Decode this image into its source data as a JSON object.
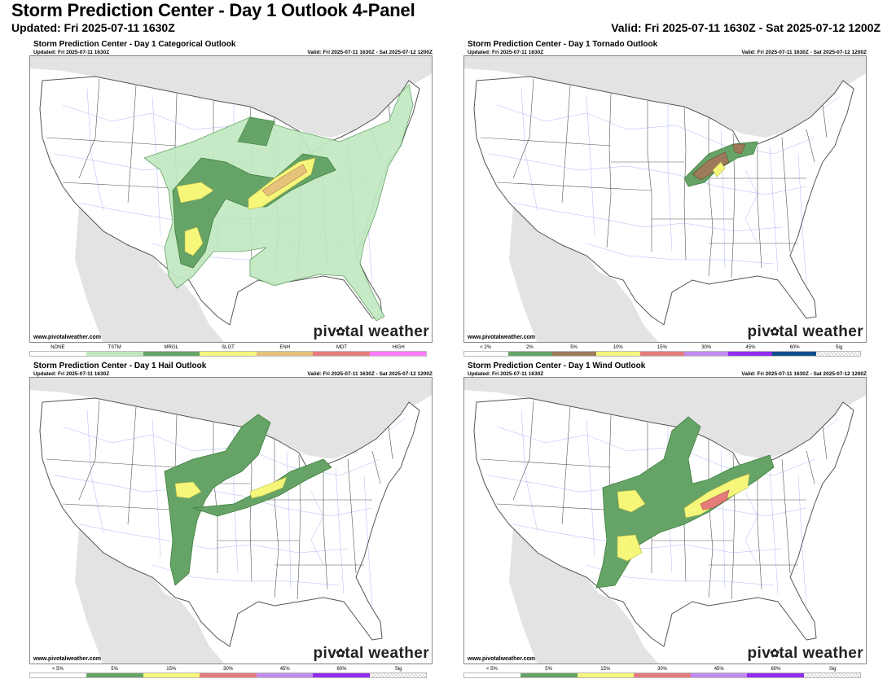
{
  "header": {
    "title": "Storm Prediction Center - Day 1 Outlook 4-Panel",
    "updated": "Updated: Fri 2025-07-11 1630Z",
    "valid": "Valid: Fri 2025-07-11 1630Z - Sat 2025-07-12 1200Z"
  },
  "panels": [
    {
      "title": "Storm Prediction Center - Day 1 Categorical Outlook",
      "updated": "Updated: Fri 2025-07-11 1630Z",
      "valid": "Valid: Fri 2025-07-11 1630Z - Sat 2025-07-12 1200Z",
      "site": "www.pivotalweather.com",
      "logo_left": "piv",
      "logo_right": "tal weather",
      "legend": [
        {
          "label": "NONE",
          "color": "#ffffff"
        },
        {
          "label": "TSTM",
          "color": "#c1e9c1"
        },
        {
          "label": "MRGL",
          "color": "#66a366"
        },
        {
          "label": "SLGT",
          "color": "#f6f67b"
        },
        {
          "label": "ENH",
          "color": "#e6c27a"
        },
        {
          "label": "MDT",
          "color": "#e67b7b"
        },
        {
          "label": "HIGH",
          "color": "#ff7bff"
        }
      ]
    },
    {
      "title": "Storm Prediction Center - Day 1 Tornado Outlook",
      "updated": "Updated: Fri 2025-07-11 1630Z",
      "valid": "Valid: Fri 2025-07-11 1630Z - Sat 2025-07-12 1200Z",
      "site": "www.pivotalweather.com",
      "logo_left": "piv",
      "logo_right": "tal weather",
      "legend": [
        {
          "label": "< 2%",
          "color": "#ffffff"
        },
        {
          "label": "2%",
          "color": "#66a366"
        },
        {
          "label": "5%",
          "color": "#9d7a5a"
        },
        {
          "label": "10%",
          "color": "#f6f67b"
        },
        {
          "label": "15%",
          "color": "#e67b7b"
        },
        {
          "label": "30%",
          "color": "#c28bf0"
        },
        {
          "label": "45%",
          "color": "#912cee"
        },
        {
          "label": "60%",
          "color": "#104e8b"
        },
        {
          "label": "Sig",
          "color": "#e0e0e0"
        }
      ]
    },
    {
      "title": "Storm Prediction Center - Day 1 Hail Outlook",
      "updated": "Updated: Fri 2025-07-11 1630Z",
      "valid": "Valid: Fri 2025-07-11 1630Z - Sat 2025-07-12 1200Z",
      "site": "www.pivotalweather.com",
      "logo_left": "piv",
      "logo_right": "tal weather",
      "legend": [
        {
          "label": "< 5%",
          "color": "#ffffff"
        },
        {
          "label": "5%",
          "color": "#66a366"
        },
        {
          "label": "15%",
          "color": "#f6f67b"
        },
        {
          "label": "30%",
          "color": "#e67b7b"
        },
        {
          "label": "45%",
          "color": "#c28bf0"
        },
        {
          "label": "60%",
          "color": "#912cee"
        },
        {
          "label": "Sig",
          "color": "#e0e0e0"
        }
      ]
    },
    {
      "title": "Storm Prediction Center - Day 1 Wind Outlook",
      "updated": "Updated: Fri 2025-07-11 1630Z",
      "valid": "Valid: Fri 2025-07-11 1630Z - Sat 2025-07-12 1200Z",
      "site": "www.pivotalweather.com",
      "logo_left": "piv",
      "logo_right": "tal weather",
      "legend": [
        {
          "label": "< 5%",
          "color": "#ffffff"
        },
        {
          "label": "5%",
          "color": "#66a366"
        },
        {
          "label": "15%",
          "color": "#f6f67b"
        },
        {
          "label": "30%",
          "color": "#e67b7b"
        },
        {
          "label": "45%",
          "color": "#c28bf0"
        },
        {
          "label": "60%",
          "color": "#912cee"
        },
        {
          "label": "Sig",
          "color": "#e0e0e0"
        }
      ]
    }
  ]
}
